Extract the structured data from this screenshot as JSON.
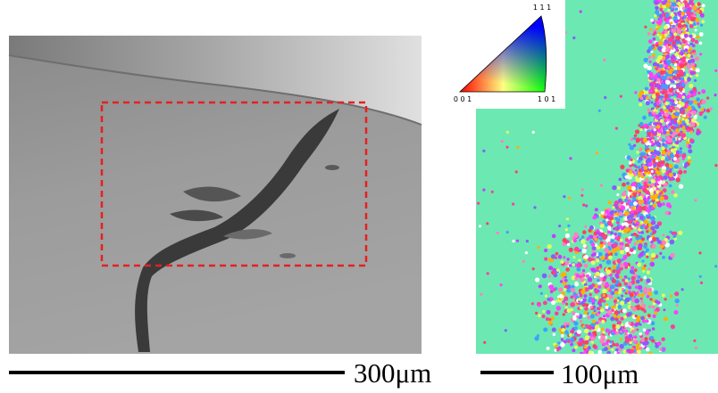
{
  "ipf_key": {
    "top": "1 1 1",
    "left": "0 0 1",
    "right": "1 0 1"
  },
  "scale_bars": [
    {
      "label": "300μm"
    },
    {
      "label": "100μm"
    }
  ]
}
